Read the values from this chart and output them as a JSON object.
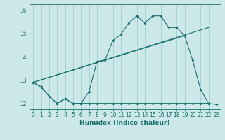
{
  "xlabel": "Humidex (Indice chaleur)",
  "x_values": [
    0,
    1,
    2,
    3,
    4,
    5,
    6,
    7,
    8,
    9,
    10,
    11,
    12,
    13,
    14,
    15,
    16,
    17,
    18,
    19,
    20,
    21,
    22,
    23
  ],
  "line1_y": [
    12.9,
    12.7,
    12.3,
    12.0,
    12.2,
    12.0,
    12.0,
    12.5,
    13.8,
    13.85,
    14.7,
    14.95,
    15.45,
    15.75,
    15.45,
    15.75,
    15.75,
    15.25,
    15.25,
    14.9,
    13.85,
    12.6,
    12.0,
    null
  ],
  "line2_y": [
    12.9,
    12.7,
    12.3,
    12.0,
    12.2,
    12.0,
    12.0,
    12.0,
    12.0,
    12.0,
    12.0,
    12.0,
    12.0,
    12.0,
    12.0,
    12.0,
    12.0,
    12.0,
    12.0,
    12.0,
    12.0,
    12.0,
    12.0,
    11.95
  ],
  "trend1_x": [
    0,
    19
  ],
  "trend1_y": [
    12.9,
    14.9
  ],
  "trend2_x": [
    0,
    22
  ],
  "trend2_y": [
    12.9,
    15.25
  ],
  "bg_color": "#cce8e8",
  "grid_color": "#99cccc",
  "line_color": "#1a7070",
  "ylim": [
    11.75,
    16.25
  ],
  "xlim": [
    -0.5,
    23.5
  ],
  "yticks": [
    12,
    13,
    14,
    15,
    16
  ],
  "xticks": [
    0,
    1,
    2,
    3,
    4,
    5,
    6,
    7,
    8,
    9,
    10,
    11,
    12,
    13,
    14,
    15,
    16,
    17,
    18,
    19,
    20,
    21,
    22,
    23
  ]
}
